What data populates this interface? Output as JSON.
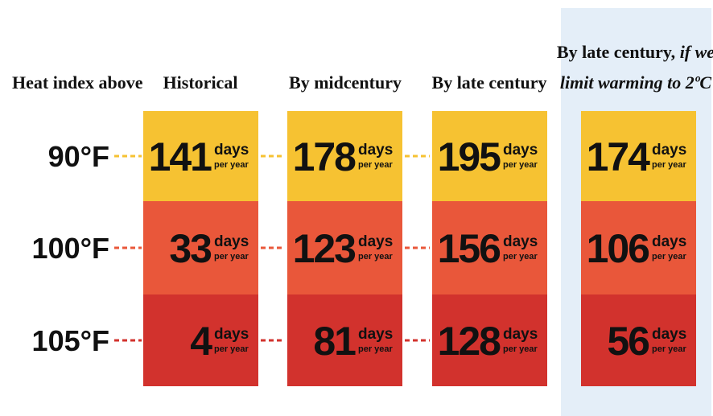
{
  "header": {
    "row_label": "Heat index above",
    "columns": [
      "Historical",
      "By midcentury",
      "By late century"
    ],
    "last_column": {
      "lines": [
        [
          {
            "text": "By late century, ",
            "italic": false
          },
          {
            "text": "if we",
            "italic": true
          }
        ],
        [
          {
            "text": "limit warming to 2ºC",
            "italic": true
          }
        ]
      ]
    }
  },
  "unit": "days",
  "unit_sub": "per year",
  "rows": [
    {
      "label": "90°F",
      "color": "#f6c232",
      "cells": [
        "141",
        "178",
        "195",
        "174"
      ]
    },
    {
      "label": "100°F",
      "color": "#e9573a",
      "cells": [
        "33",
        "123",
        "156",
        "106"
      ]
    },
    {
      "label": "105°F",
      "color": "#d2322d",
      "cells": [
        "4",
        "81",
        "128",
        "56"
      ]
    }
  ]
}
